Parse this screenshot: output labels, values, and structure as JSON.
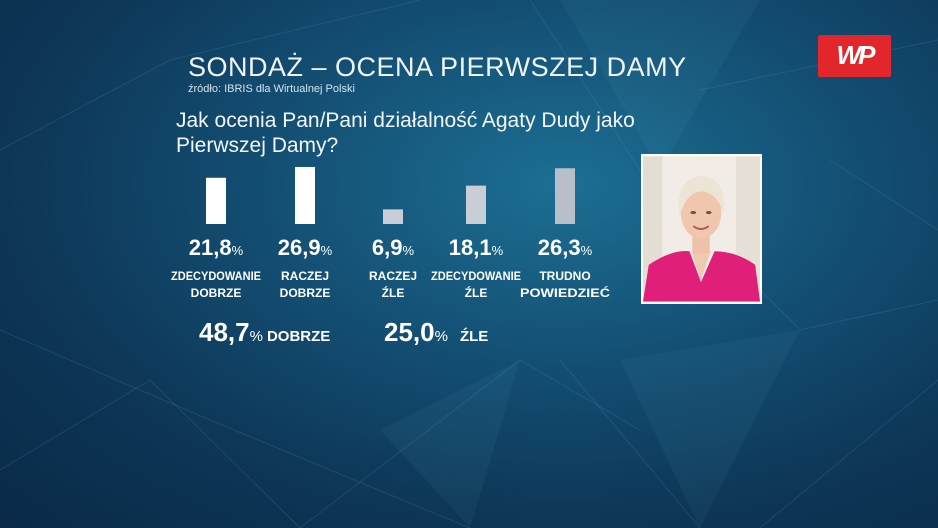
{
  "header": {
    "title": "SONDAŻ – OCENA PIERWSZEJ DAMY",
    "source": "źródło: IBRIS dla Wirtualnej Polski",
    "question": "Jak ocenia Pan/Pani działalność Agaty Dudy jako Pierwszej Damy?"
  },
  "logo": {
    "text": "WP",
    "color": "#e3262b"
  },
  "chart_data": {
    "type": "bar",
    "title": "SONDAŻ – OCENA PIERWSZEJ DAMY",
    "categories": [
      "ZDECYDOWANIE DOBRZE",
      "RACZEJ DOBRZE",
      "RACZEJ ŹLE",
      "ZDECYDOWANIE ŹLE",
      "TRUDNO POWIEDZIEĆ"
    ],
    "category_lines": [
      [
        "ZDECYDOWANIE",
        "DOBRZE"
      ],
      [
        "RACZEJ",
        "DOBRZE"
      ],
      [
        "RACZEJ",
        "ŹLE"
      ],
      [
        "ZDECYDOWANIE",
        "ŹLE"
      ],
      [
        "TRUDNO",
        "POWIEDZIEĆ"
      ]
    ],
    "values": [
      21.8,
      26.9,
      6.9,
      18.1,
      26.3
    ],
    "value_labels": [
      "21,8",
      "26,9",
      "6,9",
      "18,1",
      "26,3"
    ],
    "unit": "%",
    "bar_colors": [
      "#ffffff",
      "#ffffff",
      "#c9ced6",
      "#c9ced6",
      "#b9bfc8"
    ],
    "summary": [
      {
        "value": "48,7",
        "unit": "%",
        "label": "DOBRZE"
      },
      {
        "value": "25,0",
        "unit": "%",
        "label": "ŹLE"
      }
    ]
  }
}
